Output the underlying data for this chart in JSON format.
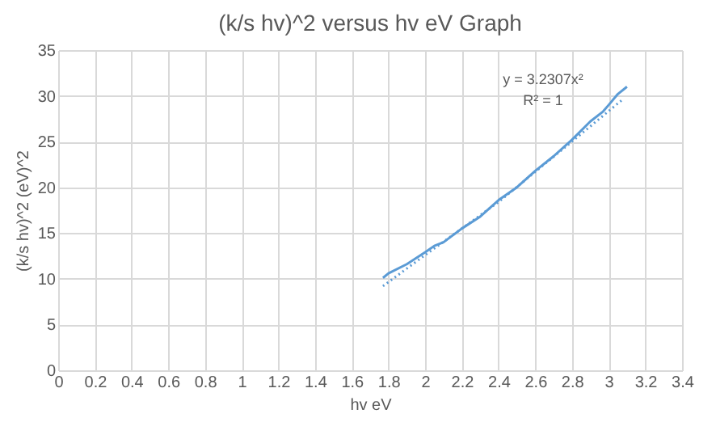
{
  "chart_data": {
    "type": "line",
    "title": "(k/s hv)^2 versus hv eV Graph",
    "xlabel": "hv eV",
    "ylabel": "(k/s hv)^2 (eV)^2",
    "xlim": [
      0,
      3.4
    ],
    "xticks": [
      0,
      0.2,
      0.4,
      0.6,
      0.8,
      1,
      1.2,
      1.4,
      1.6,
      1.8,
      2,
      2.2,
      2.4,
      2.6,
      2.8,
      3,
      3.2,
      3.4
    ],
    "ylim": [
      0,
      35
    ],
    "yticks": [
      0,
      5,
      10,
      15,
      20,
      25,
      30,
      35
    ],
    "grid": true,
    "series": [
      {
        "color": "#5b9bd5",
        "line_style": "solid",
        "x": [
          1.77,
          1.8,
          1.9,
          2.0,
          2.05,
          2.1,
          2.2,
          2.3,
          2.4,
          2.5,
          2.6,
          2.7,
          2.8,
          2.9,
          2.97,
          3.0,
          3.05,
          3.1
        ],
        "values": [
          10.1,
          10.6,
          11.6,
          12.9,
          13.6,
          14.0,
          15.5,
          16.8,
          18.6,
          20.0,
          21.8,
          23.4,
          25.2,
          27.2,
          28.3,
          29.0,
          30.2,
          31.0
        ]
      },
      {
        "color": "#5b9bd5",
        "line_style": "dotted",
        "x": [
          1.77,
          2.0,
          2.4,
          2.8,
          3.07
        ],
        "values": [
          9.2,
          12.6,
          18.4,
          25.0,
          29.5
        ]
      }
    ],
    "annotations": [
      "y = 3.2307x²",
      "R² = 1"
    ]
  }
}
